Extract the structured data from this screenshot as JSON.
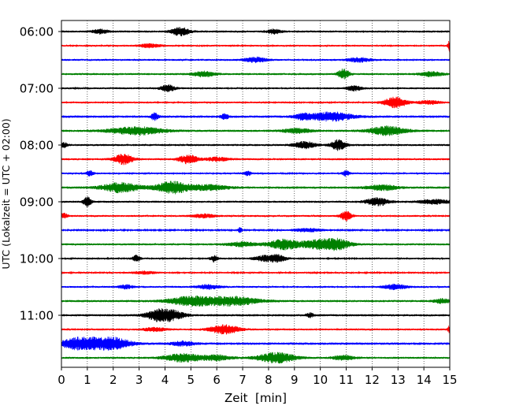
{
  "chart_data": {
    "type": "line",
    "chart_kind": "helicorder (seismogram drum plot)",
    "xlabel": "Zeit  [min]",
    "ylabel": "UTC (Lokalzeit = UTC + 02:00)",
    "xlim": [
      0,
      15
    ],
    "x_ticks": [
      "0",
      "1",
      "2",
      "3",
      "4",
      "5",
      "6",
      "7",
      "8",
      "9",
      "10",
      "11",
      "12",
      "13",
      "14",
      "15"
    ],
    "y_ticks": [
      {
        "label": "06:00",
        "row": 0
      },
      {
        "label": "07:00",
        "row": 4
      },
      {
        "label": "08:00",
        "row": 8
      },
      {
        "label": "09:00",
        "row": 12
      },
      {
        "label": "10:00",
        "row": 16
      },
      {
        "label": "11:00",
        "row": 20
      }
    ],
    "grid": {
      "vertical_dotted_each_minute": true,
      "horizontal": false
    },
    "row_minutes": 15,
    "color_cycle": [
      "#000000",
      "#ff0000",
      "#0000ff",
      "#008000"
    ],
    "traces": [
      {
        "start": "06:00",
        "noise": 0.14,
        "events": [
          [
            4.6,
            0.55,
            0.25
          ],
          [
            1.5,
            0.3,
            0.2
          ],
          [
            8.2,
            0.3,
            0.2
          ]
        ]
      },
      {
        "start": "06:15",
        "noise": 0.12,
        "events": [
          [
            15.0,
            0.9,
            0.05
          ],
          [
            3.4,
            0.25,
            0.3
          ]
        ]
      },
      {
        "start": "06:30",
        "noise": 0.13,
        "events": [
          [
            7.5,
            0.35,
            0.3
          ],
          [
            11.5,
            0.3,
            0.3
          ]
        ]
      },
      {
        "start": "06:45",
        "noise": 0.14,
        "events": [
          [
            10.9,
            0.7,
            0.15
          ],
          [
            5.5,
            0.35,
            0.3
          ],
          [
            14.3,
            0.3,
            0.3
          ]
        ]
      },
      {
        "start": "07:00",
        "noise": 0.13,
        "events": [
          [
            4.1,
            0.45,
            0.2
          ],
          [
            11.3,
            0.35,
            0.2
          ]
        ]
      },
      {
        "start": "07:15",
        "noise": 0.12,
        "events": [
          [
            12.9,
            0.75,
            0.3
          ],
          [
            14.2,
            0.25,
            0.3
          ]
        ]
      },
      {
        "start": "07:30",
        "noise": 0.16,
        "events": [
          [
            10.4,
            0.6,
            0.6
          ],
          [
            3.6,
            0.45,
            0.1
          ],
          [
            6.3,
            0.35,
            0.1
          ],
          [
            9.3,
            0.35,
            0.2
          ]
        ]
      },
      {
        "start": "07:45",
        "noise": 0.15,
        "events": [
          [
            2.9,
            0.55,
            0.7
          ],
          [
            12.6,
            0.6,
            0.5
          ],
          [
            9.1,
            0.3,
            0.4
          ]
        ]
      },
      {
        "start": "08:00",
        "noise": 0.14,
        "events": [
          [
            10.7,
            0.7,
            0.2
          ],
          [
            9.4,
            0.45,
            0.3
          ],
          [
            0.1,
            0.35,
            0.1
          ]
        ]
      },
      {
        "start": "08:15",
        "noise": 0.14,
        "events": [
          [
            2.4,
            0.7,
            0.25
          ],
          [
            4.9,
            0.6,
            0.25
          ],
          [
            6.0,
            0.25,
            0.3
          ]
        ]
      },
      {
        "start": "08:30",
        "noise": 0.12,
        "events": [
          [
            1.1,
            0.35,
            0.1
          ],
          [
            7.2,
            0.3,
            0.1
          ],
          [
            11.0,
            0.35,
            0.1
          ]
        ]
      },
      {
        "start": "08:45",
        "noise": 0.16,
        "events": [
          [
            2.3,
            0.65,
            0.5
          ],
          [
            4.3,
            0.8,
            0.45
          ],
          [
            5.7,
            0.35,
            0.5
          ],
          [
            12.4,
            0.35,
            0.4
          ]
        ]
      },
      {
        "start": "09:00",
        "noise": 0.14,
        "events": [
          [
            1.0,
            0.75,
            0.1
          ],
          [
            12.2,
            0.55,
            0.3
          ],
          [
            14.4,
            0.3,
            0.4
          ]
        ]
      },
      {
        "start": "09:15",
        "noise": 0.13,
        "events": [
          [
            11.0,
            0.65,
            0.15
          ],
          [
            0.1,
            0.35,
            0.1
          ],
          [
            5.5,
            0.25,
            0.3
          ]
        ]
      },
      {
        "start": "09:30",
        "noise": 0.1,
        "events": [
          [
            6.9,
            0.4,
            0.05
          ],
          [
            9.5,
            0.25,
            0.4
          ]
        ]
      },
      {
        "start": "09:45",
        "noise": 0.14,
        "events": [
          [
            8.6,
            0.7,
            0.4
          ],
          [
            9.9,
            0.6,
            0.45
          ],
          [
            10.7,
            0.65,
            0.35
          ],
          [
            7.0,
            0.3,
            0.4
          ]
        ]
      },
      {
        "start": "10:00",
        "noise": 0.12,
        "events": [
          [
            2.9,
            0.45,
            0.1
          ],
          [
            5.9,
            0.45,
            0.1
          ],
          [
            7.9,
            0.4,
            0.3
          ],
          [
            8.4,
            0.4,
            0.2
          ]
        ]
      },
      {
        "start": "10:15",
        "noise": 0.11,
        "events": [
          [
            3.2,
            0.2,
            0.3
          ]
        ]
      },
      {
        "start": "10:30",
        "noise": 0.13,
        "events": [
          [
            12.9,
            0.35,
            0.3
          ],
          [
            5.7,
            0.3,
            0.3
          ],
          [
            2.5,
            0.25,
            0.2
          ]
        ]
      },
      {
        "start": "10:45",
        "noise": 0.15,
        "events": [
          [
            5.0,
            0.6,
            0.6
          ],
          [
            6.6,
            0.6,
            0.7
          ],
          [
            14.7,
            0.3,
            0.2
          ]
        ]
      },
      {
        "start": "11:00",
        "noise": 0.15,
        "events": [
          [
            3.8,
            0.85,
            0.35
          ],
          [
            4.4,
            0.45,
            0.3
          ],
          [
            9.6,
            0.3,
            0.1
          ]
        ]
      },
      {
        "start": "11:15",
        "noise": 0.13,
        "events": [
          [
            6.3,
            0.6,
            0.4
          ],
          [
            15.0,
            0.6,
            0.05
          ],
          [
            3.6,
            0.25,
            0.3
          ]
        ]
      },
      {
        "start": "11:30",
        "noise": 0.16,
        "events": [
          [
            0.6,
            0.85,
            0.4
          ],
          [
            1.9,
            0.9,
            0.5
          ],
          [
            1.0,
            0.6,
            0.2
          ],
          [
            4.7,
            0.3,
            0.3
          ]
        ]
      },
      {
        "start": "11:45",
        "noise": 0.14,
        "events": [
          [
            8.3,
            0.7,
            0.5
          ],
          [
            4.7,
            0.55,
            0.5
          ],
          [
            6.0,
            0.35,
            0.4
          ],
          [
            10.9,
            0.3,
            0.3
          ]
        ]
      }
    ]
  }
}
